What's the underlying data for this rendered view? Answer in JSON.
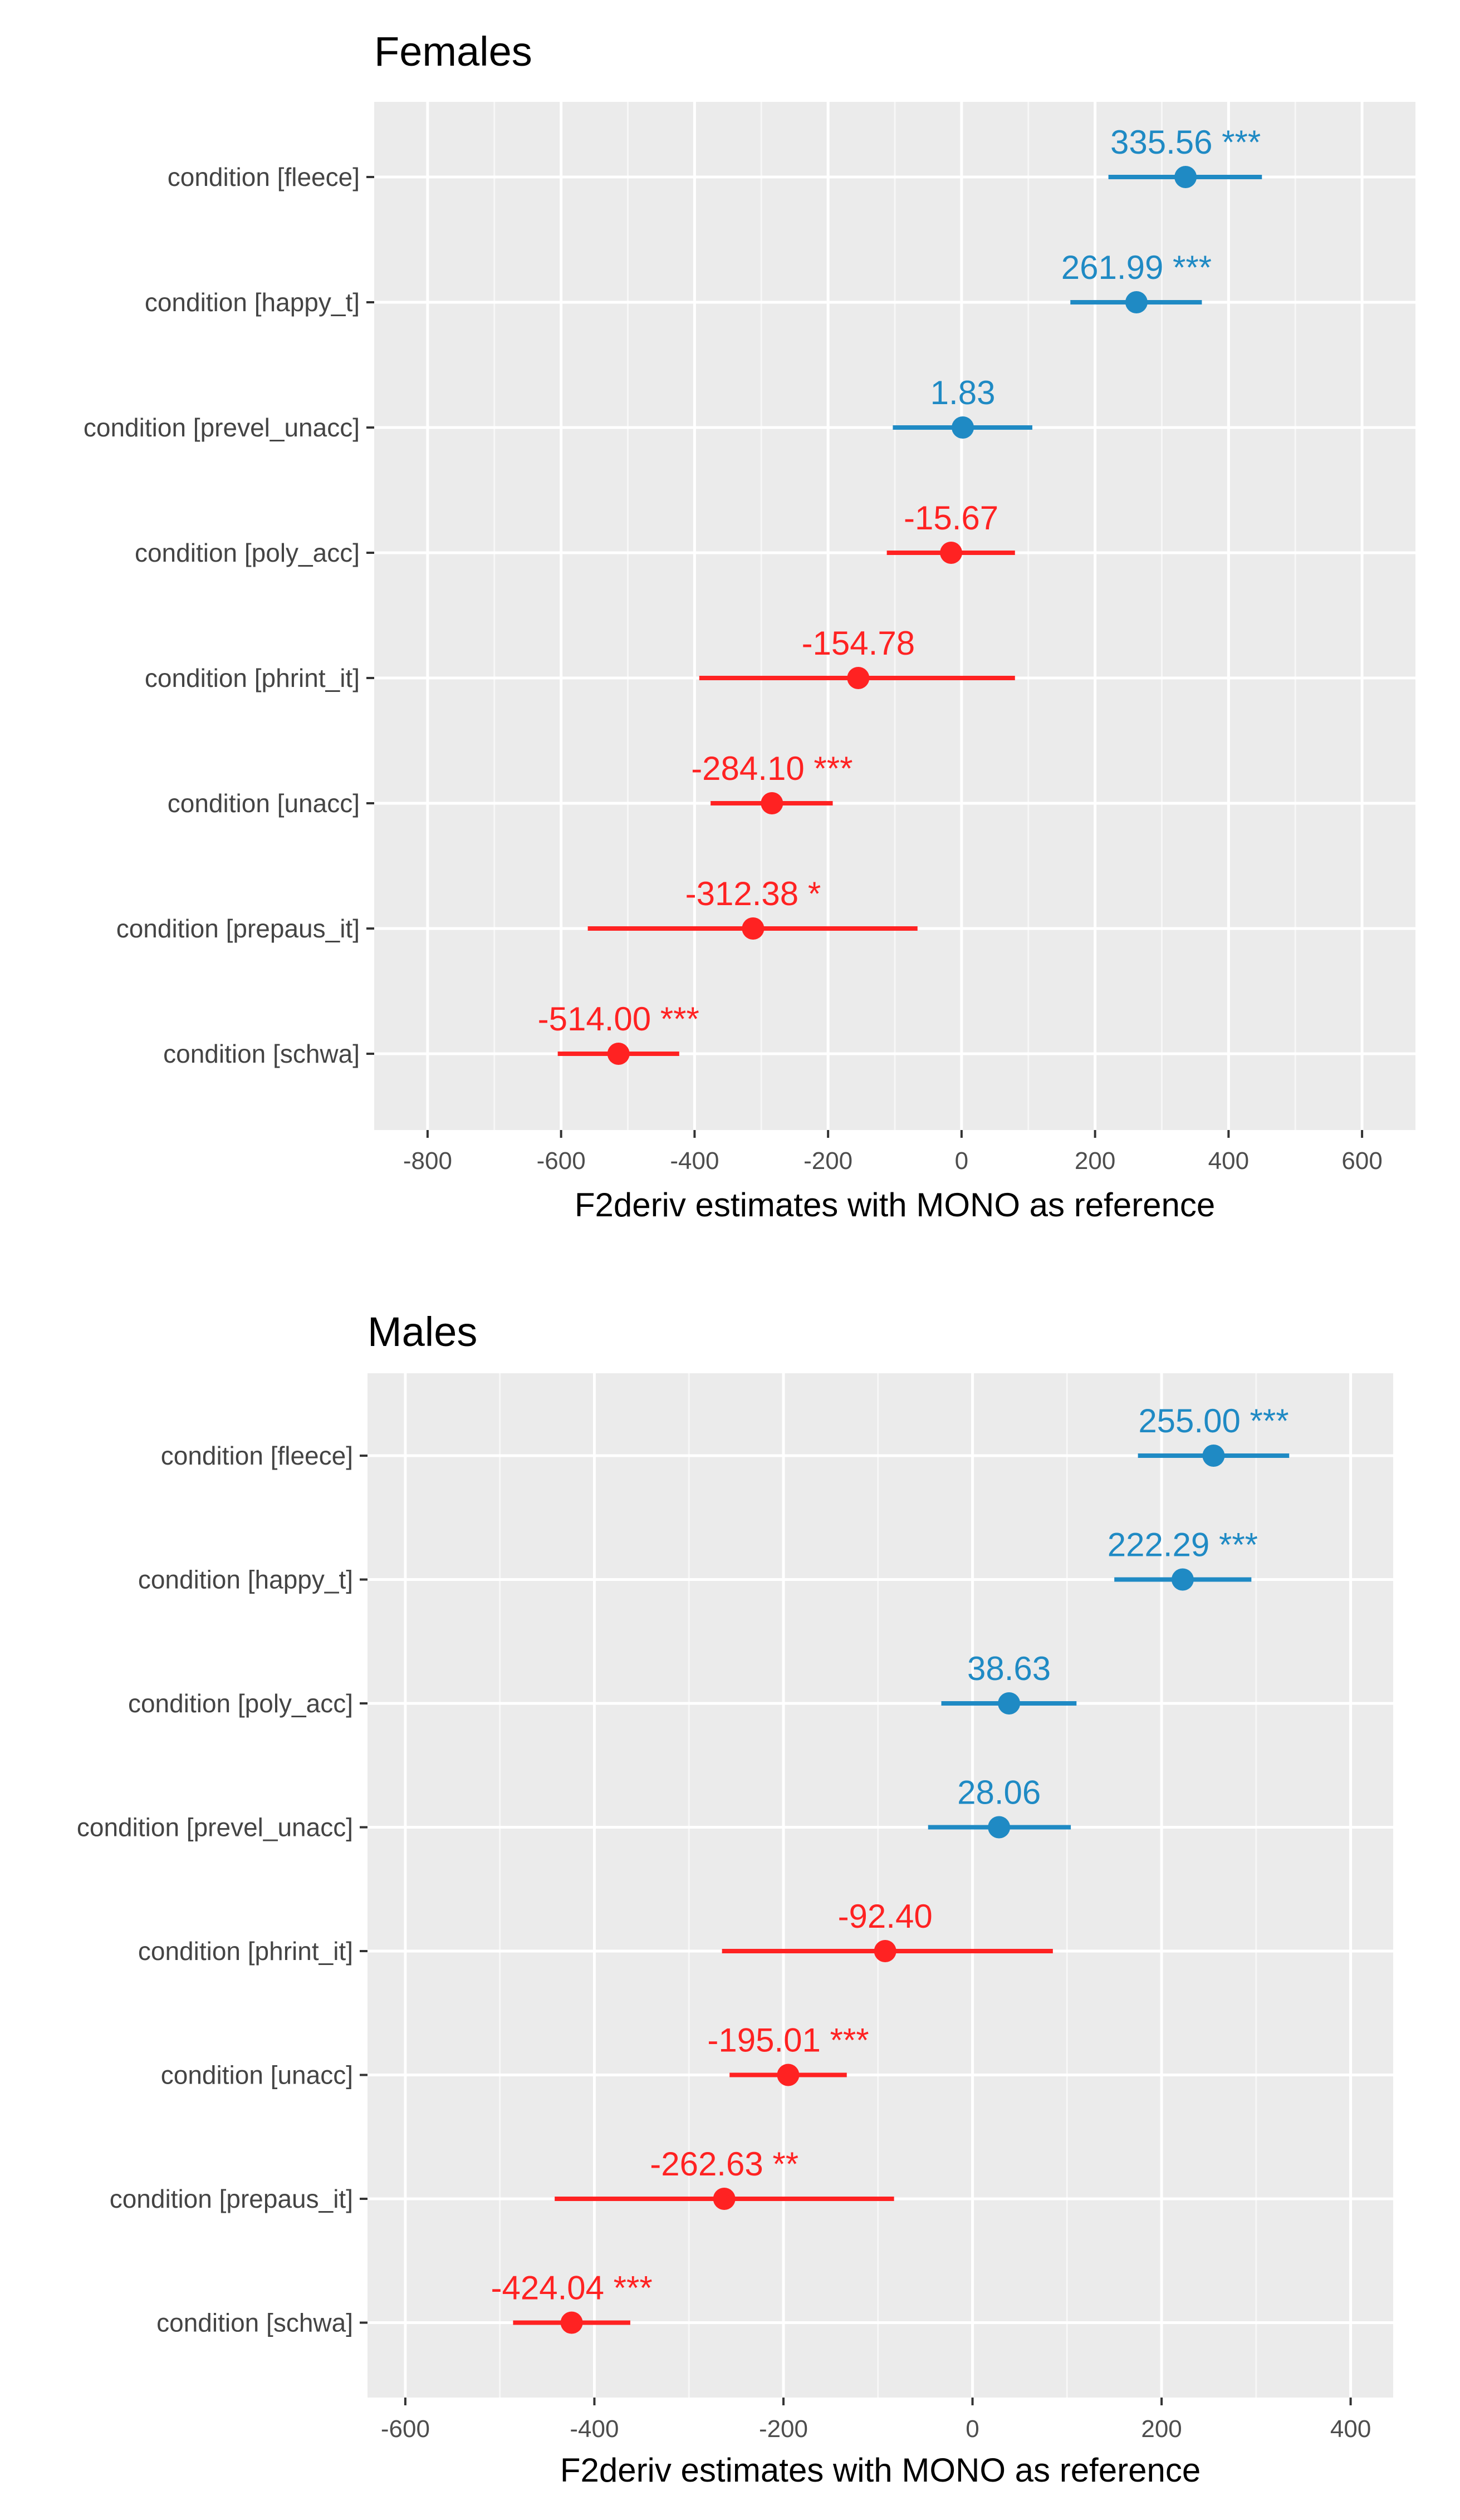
{
  "chart_data": [
    {
      "type": "forest",
      "title": "Females",
      "xlabel": "F2deriv estimates with MONO as reference",
      "xlim": [
        -880,
        680
      ],
      "xticks": [
        -800,
        -600,
        -400,
        -200,
        0,
        200,
        400,
        600
      ],
      "xtick_labels": [
        "-800",
        "-600",
        "-400",
        "-200",
        "0",
        "200",
        "400",
        "600"
      ],
      "grid": true,
      "colors": {
        "positive": "#1f8ac4",
        "negative": "#ff2222"
      },
      "rows": [
        {
          "category": "condition [fleece]",
          "estimate": 335.56,
          "ci_low": 220,
          "ci_high": 450,
          "label": "335.56 ***"
        },
        {
          "category": "condition [happy_t]",
          "estimate": 261.99,
          "ci_low": 163,
          "ci_high": 360,
          "label": "261.99 ***"
        },
        {
          "category": "condition [prevel_unacc]",
          "estimate": 1.83,
          "ci_low": -103,
          "ci_high": 106,
          "label": "1.83"
        },
        {
          "category": "condition [poly_acc]",
          "estimate": -15.67,
          "ci_low": -112,
          "ci_high": 80,
          "label": "-15.67"
        },
        {
          "category": "condition [phrint_it]",
          "estimate": -154.78,
          "ci_low": -393,
          "ci_high": 80,
          "label": "-154.78"
        },
        {
          "category": "condition [unacc]",
          "estimate": -284.1,
          "ci_low": -376,
          "ci_high": -193,
          "label": "-284.10 ***"
        },
        {
          "category": "condition [prepaus_it]",
          "estimate": -312.38,
          "ci_low": -560,
          "ci_high": -66,
          "label": "-312.38 *"
        },
        {
          "category": "condition [schwa]",
          "estimate": -514.0,
          "ci_low": -605,
          "ci_high": -423,
          "label": "-514.00 ***"
        }
      ]
    },
    {
      "type": "forest",
      "title": "Males",
      "xlabel": "F2deriv estimates with MONO as reference",
      "xlim": [
        -640,
        445
      ],
      "xticks": [
        -600,
        -400,
        -200,
        0,
        200,
        400
      ],
      "xtick_labels": [
        "-600",
        "-400",
        "-200",
        "0",
        "200",
        "400"
      ],
      "grid": true,
      "colors": {
        "positive": "#1f8ac4",
        "negative": "#ff2222"
      },
      "rows": [
        {
          "category": "condition [fleece]",
          "estimate": 255.0,
          "ci_low": 175,
          "ci_high": 335,
          "label": "255.00 ***"
        },
        {
          "category": "condition [happy_t]",
          "estimate": 222.29,
          "ci_low": 150,
          "ci_high": 295,
          "label": "222.29 ***"
        },
        {
          "category": "condition [poly_acc]",
          "estimate": 38.63,
          "ci_low": -33,
          "ci_high": 110,
          "label": "38.63"
        },
        {
          "category": "condition [prevel_unacc]",
          "estimate": 28.06,
          "ci_low": -47,
          "ci_high": 104,
          "label": "28.06"
        },
        {
          "category": "condition [phrint_it]",
          "estimate": -92.4,
          "ci_low": -265,
          "ci_high": 85,
          "label": "-92.40"
        },
        {
          "category": "condition [unacc]",
          "estimate": -195.01,
          "ci_low": -257,
          "ci_high": -133,
          "label": "-195.01 ***"
        },
        {
          "category": "condition [prepaus_it]",
          "estimate": -262.63,
          "ci_low": -442,
          "ci_high": -83,
          "label": "-262.63 **"
        },
        {
          "category": "condition [schwa]",
          "estimate": -424.04,
          "ci_low": -486,
          "ci_high": -362,
          "label": "-424.04 ***"
        }
      ]
    }
  ]
}
